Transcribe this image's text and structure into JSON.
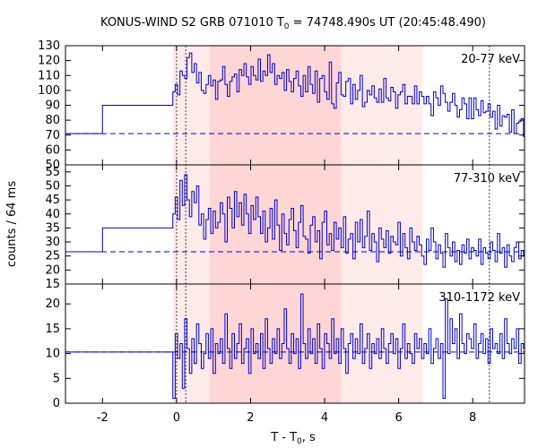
{
  "title_main": "KONUS-WIND S2 GRB 071010 T",
  "title_sub": "0",
  "title_rest": " = 74748.490s UT (20:45:48.490)",
  "ylabel": "counts / 64 ms",
  "xlabel_main": "T - T",
  "xlabel_sub": "0",
  "xlabel_rest": ", s",
  "colors": {
    "curve": "#0000cc",
    "shade_dark": "#ffd6d6",
    "shade_light": "#ffeaea",
    "marker": "#444444"
  },
  "chart_data": [
    {
      "type": "line",
      "panel": "20-77 keV",
      "label": "20-77 keV",
      "ylim": [
        50,
        130
      ],
      "yticks": [
        50,
        60,
        70,
        80,
        90,
        100,
        110,
        120,
        130
      ],
      "background": 71,
      "segments": [
        {
          "x": [
            -3.0,
            -2.0
          ],
          "y": 71
        },
        {
          "x": [
            -2.0,
            -0.1
          ],
          "y": 90
        }
      ],
      "binned": {
        "start": -0.1,
        "step": 0.064,
        "values": [
          99,
          104,
          97,
          113,
          110,
          108,
          122,
          125,
          112,
          118,
          105,
          112,
          100,
          98,
          104,
          110,
          103,
          107,
          94,
          106,
          107,
          116,
          104,
          96,
          106,
          109,
          111,
          99,
          114,
          110,
          118,
          109,
          104,
          116,
          110,
          107,
          121,
          106,
          113,
          110,
          124,
          112,
          118,
          104,
          110,
          108,
          112,
          100,
          114,
          106,
          99,
          108,
          113,
          103,
          96,
          110,
          99,
          116,
          104,
          98,
          113,
          92,
          108,
          110,
          99,
          94,
          119,
          91,
          88,
          105,
          112,
          97,
          96,
          106,
          108,
          91,
          104,
          94,
          100,
          110,
          89,
          92,
          100,
          97,
          103,
          95,
          92,
          101,
          92,
          108,
          95,
          93,
          102,
          99,
          88,
          97,
          99,
          104,
          91,
          96,
          96,
          91,
          103,
          91,
          99,
          96,
          91,
          96,
          91,
          83,
          99,
          95,
          90,
          103,
          98,
          92,
          86,
          92,
          98,
          90,
          82,
          87,
          95,
          91,
          81,
          95,
          81,
          95,
          87,
          83,
          93,
          85,
          86,
          91,
          82,
          86,
          74,
          90,
          76,
          83,
          82,
          84,
          72,
          87,
          71,
          78,
          79,
          81,
          69
        ]
      }
    },
    {
      "type": "line",
      "panel": "77-310 keV",
      "label": "77-310 keV",
      "ylim": [
        15,
        57.5
      ],
      "yticks": [
        15,
        20,
        25,
        30,
        35,
        40,
        45,
        50,
        55
      ],
      "background": 26.5,
      "segments": [
        {
          "x": [
            -3.0,
            -2.0
          ],
          "y": 26.5
        },
        {
          "x": [
            -2.0,
            -0.1
          ],
          "y": 35
        }
      ],
      "binned": {
        "start": -0.1,
        "step": 0.064,
        "values": [
          40,
          46,
          38,
          52,
          43,
          54,
          45,
          39,
          48,
          44,
          50,
          36,
          40,
          31,
          38,
          42,
          33,
          41,
          35,
          37,
          44,
          40,
          30,
          46,
          42,
          35,
          48,
          39,
          44,
          36,
          47,
          40,
          33,
          43,
          38,
          46,
          39,
          33,
          41,
          30,
          35,
          42,
          31,
          45,
          36,
          27,
          40,
          33,
          29,
          38,
          42,
          34,
          28,
          37,
          43,
          32,
          31,
          26,
          36,
          39,
          30,
          34,
          24,
          37,
          41,
          29,
          33,
          27,
          37,
          31,
          35,
          28,
          39,
          26,
          31,
          33,
          24,
          37,
          30,
          38,
          28,
          32,
          41,
          27,
          33,
          30,
          23,
          35,
          31,
          28,
          34,
          26,
          32,
          30,
          29,
          37,
          25,
          33,
          28,
          24,
          35,
          30,
          27,
          32,
          29,
          25,
          22,
          31,
          27,
          35,
          30,
          24,
          29,
          26,
          21,
          33,
          28,
          25,
          30,
          23,
          27,
          22,
          29,
          26,
          31,
          24,
          28,
          27,
          25,
          31,
          22,
          28,
          26,
          24,
          30,
          27,
          23,
          33,
          26,
          28,
          21,
          29,
          25,
          23,
          28,
          30,
          24,
          27,
          25
        ]
      }
    },
    {
      "type": "line",
      "panel": "310-1172 keV",
      "label": "310-1172 keV",
      "ylim": [
        0,
        24
      ],
      "yticks": [
        0,
        5,
        10,
        15,
        20
      ],
      "background": 10.3,
      "segments": [
        {
          "x": [
            -3.0,
            -0.1
          ],
          "y": 10.3
        }
      ],
      "binned": {
        "start": -0.1,
        "step": 0.064,
        "values": [
          1,
          14,
          9,
          12,
          3,
          17,
          11,
          6,
          13,
          8,
          16,
          12,
          7,
          10,
          14,
          9,
          15,
          6,
          12,
          10,
          13,
          8,
          18,
          11,
          7,
          14,
          9,
          12,
          16,
          8,
          11,
          13,
          6,
          15,
          10,
          12,
          9,
          14,
          7,
          17,
          11,
          8,
          13,
          10,
          15,
          9,
          12,
          19,
          11,
          8,
          14,
          10,
          13,
          7,
          22,
          12,
          9,
          15,
          10,
          13,
          8,
          16,
          11,
          7,
          14,
          12,
          9,
          17,
          10,
          13,
          8,
          15,
          11,
          6,
          12,
          14,
          9,
          13,
          10,
          16,
          8,
          11,
          14,
          7,
          12,
          10,
          13,
          9,
          15,
          11,
          8,
          12,
          14,
          10,
          13,
          7,
          11,
          16,
          9,
          12,
          10,
          8,
          14,
          11,
          13,
          9,
          12,
          10,
          15,
          8,
          11,
          13,
          9,
          12,
          1,
          21,
          10,
          17,
          12,
          15,
          9,
          18,
          12,
          10,
          14,
          13,
          11,
          16,
          9,
          12,
          14,
          10,
          13,
          8,
          15,
          11,
          12,
          10,
          14,
          9,
          17,
          12,
          10,
          13,
          11,
          15,
          8,
          12,
          11
        ]
      }
    }
  ],
  "axes": {
    "xlim": [
      -3.0,
      9.4
    ],
    "xticks": [
      -2,
      0,
      2,
      4,
      6,
      8
    ],
    "shaded_regions": [
      {
        "x0": -0.1,
        "x1": 0.9,
        "shade": "light"
      },
      {
        "x0": 0.9,
        "x1": 4.45,
        "shade": "dark"
      },
      {
        "x0": 4.45,
        "x1": 6.65,
        "shade": "light"
      }
    ],
    "vertical_markers": [
      0.0,
      0.25,
      8.45
    ]
  }
}
